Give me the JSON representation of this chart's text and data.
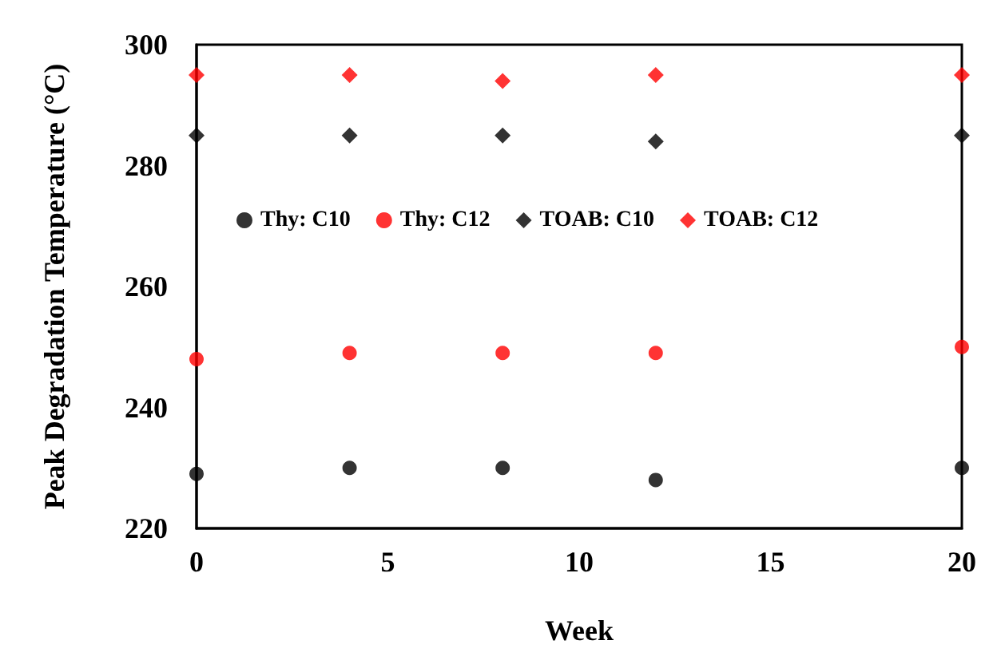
{
  "chart_data": {
    "type": "scatter",
    "xlabel": "Week",
    "ylabel": "Peak Degradation Temperature (°C)",
    "x": [
      0,
      4,
      8,
      12,
      20
    ],
    "series": [
      {
        "name": "Thy: C10",
        "color": "#000000",
        "marker": "circle",
        "values": [
          229,
          230,
          230,
          228,
          230
        ]
      },
      {
        "name": "Thy: C12",
        "color": "#ff0000",
        "marker": "circle",
        "values": [
          248,
          249,
          249,
          249,
          250
        ]
      },
      {
        "name": "TOAB: C10",
        "color": "#000000",
        "marker": "diamond",
        "values": [
          285,
          285,
          285,
          284,
          285
        ]
      },
      {
        "name": "TOAB: C12",
        "color": "#ff0000",
        "marker": "diamond",
        "values": [
          295,
          295,
          294,
          295,
          295
        ]
      }
    ],
    "xlim": [
      0,
      20
    ],
    "xticks": [
      0,
      5,
      10,
      15,
      20
    ],
    "ylim": [
      220,
      300
    ],
    "yticks": [
      220,
      240,
      260,
      280,
      300
    ],
    "grid": false,
    "legend": "top"
  }
}
